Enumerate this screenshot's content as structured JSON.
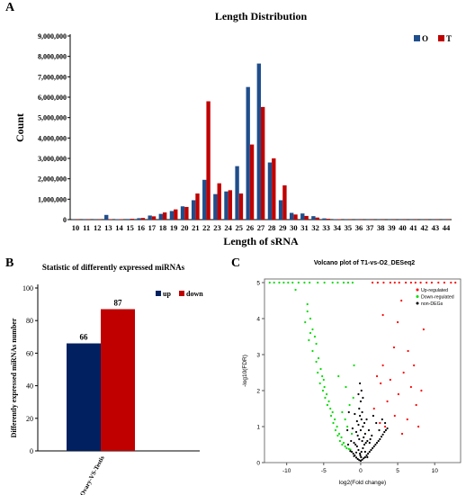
{
  "panels": {
    "a": "A",
    "b": "B",
    "c": "C"
  },
  "colors": {
    "navy": "#1f4e8c",
    "red": "#c00000",
    "b_up": "#002060",
    "b_down": "#c00000",
    "volcano_up": "#ff0000",
    "volcano_down": "#00dd00",
    "volcano_non": "#000000"
  },
  "chart_data": [
    {
      "type": "bar",
      "title": "Length Distribution",
      "xlabel": "Length of sRNA",
      "ylabel": "Count",
      "ylim": [
        0,
        9000000
      ],
      "yticks": [
        0,
        1000000,
        2000000,
        3000000,
        4000000,
        5000000,
        6000000,
        7000000,
        8000000,
        9000000
      ],
      "yticklabels": [
        "0",
        "1,000,000",
        "2,000,000",
        "3,000,000",
        "4,000,000",
        "5,000,000",
        "6,000,000",
        "7,000,000",
        "8,000,000",
        "9,000,000"
      ],
      "legend_position": "top-right",
      "categories": [
        "10",
        "11",
        "12",
        "13",
        "14",
        "15",
        "16",
        "17",
        "18",
        "19",
        "20",
        "21",
        "22",
        "23",
        "24",
        "25",
        "26",
        "27",
        "28",
        "29",
        "30",
        "31",
        "32",
        "33",
        "34",
        "35",
        "36",
        "37",
        "38",
        "39",
        "40",
        "41",
        "42",
        "43",
        "44"
      ],
      "series": [
        {
          "name": "O",
          "values": [
            10000,
            10000,
            10000,
            230000,
            20000,
            30000,
            70000,
            200000,
            280000,
            420000,
            650000,
            950000,
            1950000,
            1250000,
            1380000,
            2620000,
            6500000,
            7650000,
            2800000,
            950000,
            330000,
            300000,
            170000,
            60000,
            20000,
            10000,
            5000,
            5000,
            5000,
            5000,
            5000,
            5000,
            5000,
            5000,
            5000
          ]
        },
        {
          "name": "T",
          "values": [
            10000,
            10000,
            10000,
            20000,
            20000,
            40000,
            80000,
            160000,
            350000,
            500000,
            620000,
            1280000,
            5800000,
            1780000,
            1440000,
            1280000,
            3680000,
            5520000,
            3000000,
            1680000,
            250000,
            180000,
            100000,
            40000,
            20000,
            10000,
            5000,
            5000,
            5000,
            5000,
            5000,
            5000,
            5000,
            5000,
            5000
          ]
        }
      ]
    },
    {
      "type": "bar",
      "title": "Statistic of differently expressed miRNAs",
      "ylabel": "Differently expressed miRNAs number",
      "ylim": [
        0,
        100
      ],
      "yticks": [
        0,
        20,
        40,
        60,
        80,
        100
      ],
      "legend_position": "top-right",
      "categories": [
        "Ovary-VS-Testis"
      ],
      "series": [
        {
          "name": "up",
          "values": [
            66
          ]
        },
        {
          "name": "down",
          "values": [
            87
          ]
        }
      ],
      "data_labels": [
        "66",
        "87"
      ]
    },
    {
      "type": "scatter",
      "title": "Volcano plot of T1-vs-O2_DESeq2",
      "xlabel": "log2(Fold change)",
      "ylabel": "-log10(FDR)",
      "xlim": [
        -13,
        13.5
      ],
      "ylim": [
        0,
        5.1
      ],
      "xticks": [
        -10,
        -5,
        0,
        5,
        10
      ],
      "yticks": [
        0,
        1,
        2,
        3,
        4,
        5
      ],
      "legend_position": "top-right",
      "series": [
        {
          "name": "Up-regulated",
          "points": [
            [
              1.6,
              5
            ],
            [
              2.3,
              5
            ],
            [
              3.1,
              5
            ],
            [
              4.0,
              5
            ],
            [
              4.6,
              5
            ],
            [
              5.2,
              5
            ],
            [
              6.1,
              5
            ],
            [
              6.8,
              5
            ],
            [
              7.4,
              5
            ],
            [
              8.1,
              5
            ],
            [
              8.9,
              5
            ],
            [
              9.6,
              5
            ],
            [
              10.5,
              5
            ],
            [
              11.3,
              5
            ],
            [
              12.2,
              5
            ],
            [
              12.8,
              5
            ],
            [
              5.5,
              4.5
            ],
            [
              3.0,
              4.1
            ],
            [
              5.0,
              3.9
            ],
            [
              8.5,
              3.7
            ],
            [
              4.5,
              3.2
            ],
            [
              6.4,
              3.1
            ],
            [
              7.2,
              2.7
            ],
            [
              3.0,
              2.7
            ],
            [
              5.8,
              2.5
            ],
            [
              6.8,
              2.1
            ],
            [
              2.2,
              2.4
            ],
            [
              2.7,
              2.2
            ],
            [
              4.0,
              2.3
            ],
            [
              8.2,
              2.0
            ],
            [
              5.1,
              1.9
            ],
            [
              3.6,
              1.7
            ],
            [
              7.5,
              1.6
            ],
            [
              4.6,
              1.3
            ],
            [
              2.6,
              1.1
            ],
            [
              6.3,
              1.2
            ],
            [
              1.8,
              1.5
            ],
            [
              3.3,
              1.0
            ],
            [
              5.6,
              0.8
            ],
            [
              7.8,
              1.0
            ]
          ]
        },
        {
          "name": "Down-regulated",
          "points": [
            [
              -12.3,
              5
            ],
            [
              -11.7,
              5
            ],
            [
              -11.0,
              5
            ],
            [
              -10.4,
              5
            ],
            [
              -9.8,
              5
            ],
            [
              -9.2,
              5
            ],
            [
              -8.4,
              5
            ],
            [
              -7.6,
              5
            ],
            [
              -6.9,
              5
            ],
            [
              -5.8,
              5
            ],
            [
              -4.9,
              5
            ],
            [
              -3.8,
              5
            ],
            [
              -3.1,
              5
            ],
            [
              -2.3,
              5
            ],
            [
              -1.7,
              5
            ],
            [
              -1.1,
              5
            ],
            [
              -8.8,
              4.8
            ],
            [
              -7.2,
              4.2
            ],
            [
              -6.8,
              4.0
            ],
            [
              -7.5,
              3.9
            ],
            [
              -6.5,
              3.7
            ],
            [
              -6.2,
              3.5
            ],
            [
              -7.0,
              3.4
            ],
            [
              -6.0,
              3.3
            ],
            [
              -6.5,
              3.1
            ],
            [
              -5.7,
              2.9
            ],
            [
              -6.0,
              2.8
            ],
            [
              -5.4,
              2.6
            ],
            [
              -5.8,
              2.5
            ],
            [
              -5.2,
              2.4
            ],
            [
              -5.5,
              2.2
            ],
            [
              -4.9,
              2.1
            ],
            [
              -5.1,
              2.0
            ],
            [
              -4.6,
              1.9
            ],
            [
              -4.8,
              1.8
            ],
            [
              -4.3,
              1.7
            ],
            [
              -4.5,
              1.6
            ],
            [
              -4.1,
              1.5
            ],
            [
              -3.8,
              1.4
            ],
            [
              -4.0,
              1.3
            ],
            [
              -3.5,
              1.2
            ],
            [
              -3.7,
              1.1
            ],
            [
              -3.2,
              1.0
            ],
            [
              -3.4,
              0.9
            ],
            [
              -2.9,
              0.8
            ],
            [
              -3.1,
              0.75
            ],
            [
              -2.6,
              0.7
            ],
            [
              -2.8,
              0.6
            ],
            [
              -2.3,
              0.55
            ],
            [
              -2.5,
              0.5
            ],
            [
              -2.1,
              0.45
            ],
            [
              -1.9,
              0.4
            ],
            [
              -1.6,
              0.38
            ],
            [
              -1.4,
              0.36
            ],
            [
              -2.0,
              2.1
            ],
            [
              -3.0,
              2.4
            ],
            [
              -2.1,
              1.2
            ],
            [
              -1.0,
              1.8
            ],
            [
              -0.9,
              2.7
            ],
            [
              -1.5,
              1.6
            ],
            [
              -2.5,
              1.4
            ],
            [
              -1.8,
              1.0
            ],
            [
              -1.2,
              0.8
            ],
            [
              -7.2,
              4.4
            ],
            [
              -6.8,
              3.6
            ],
            [
              -5.0,
              2.3
            ]
          ]
        },
        {
          "name": "non-DEGs",
          "points": [
            [
              0.0,
              0.05
            ],
            [
              0.2,
              0.08
            ],
            [
              -0.2,
              0.07
            ],
            [
              0.4,
              0.12
            ],
            [
              -0.4,
              0.1
            ],
            [
              0.6,
              0.15
            ],
            [
              -0.6,
              0.14
            ],
            [
              0.8,
              0.2
            ],
            [
              -0.8,
              0.2
            ],
            [
              1.0,
              0.25
            ],
            [
              -1.0,
              0.25
            ],
            [
              1.2,
              0.3
            ],
            [
              -1.2,
              0.3
            ],
            [
              1.4,
              0.35
            ],
            [
              -1.4,
              0.32
            ],
            [
              1.6,
              0.4
            ],
            [
              1.8,
              0.45
            ],
            [
              2.0,
              0.5
            ],
            [
              2.2,
              0.55
            ],
            [
              2.4,
              0.6
            ],
            [
              2.6,
              0.65
            ],
            [
              2.8,
              0.72
            ],
            [
              3.0,
              0.78
            ],
            [
              3.2,
              0.85
            ],
            [
              3.4,
              0.9
            ],
            [
              3.6,
              0.95
            ],
            [
              0.1,
              0.3
            ],
            [
              -0.1,
              0.25
            ],
            [
              0.3,
              0.4
            ],
            [
              -0.3,
              0.35
            ],
            [
              0.5,
              0.5
            ],
            [
              -0.5,
              0.45
            ],
            [
              0.7,
              0.55
            ],
            [
              -0.7,
              0.5
            ],
            [
              0.9,
              0.6
            ],
            [
              -0.9,
              0.55
            ],
            [
              0.2,
              0.6
            ],
            [
              -0.2,
              0.65
            ],
            [
              0.4,
              0.7
            ],
            [
              -0.4,
              0.75
            ],
            [
              0.6,
              0.8
            ],
            [
              -0.6,
              0.85
            ],
            [
              0.0,
              0.9
            ],
            [
              0.3,
              1.0
            ],
            [
              -0.3,
              1.05
            ],
            [
              0.1,
              1.2
            ],
            [
              -0.1,
              1.3
            ],
            [
              0.5,
              1.1
            ],
            [
              -0.5,
              1.15
            ],
            [
              0.2,
              1.4
            ],
            [
              -0.2,
              1.5
            ],
            [
              0.0,
              1.7
            ],
            [
              0.3,
              1.8
            ],
            [
              -0.3,
              1.9
            ],
            [
              0.1,
              2.0
            ],
            [
              -0.1,
              2.2
            ],
            [
              1.1,
              0.9
            ],
            [
              -1.1,
              0.95
            ],
            [
              1.5,
              0.75
            ],
            [
              2.1,
              1.1
            ],
            [
              1.7,
              1.3
            ],
            [
              -1.6,
              1.4
            ],
            [
              -1.8,
              0.9
            ],
            [
              0.8,
              1.2
            ],
            [
              -0.8,
              1.35
            ],
            [
              1.3,
              0.65
            ],
            [
              2.5,
              0.9
            ],
            [
              2.9,
              1.2
            ],
            [
              0.6,
              0.3
            ],
            [
              -0.6,
              0.28
            ],
            [
              1.2,
              0.55
            ],
            [
              -1.3,
              0.6
            ],
            [
              0.9,
              0.15
            ],
            [
              -0.9,
              0.18
            ],
            [
              3.3,
              1.1
            ],
            [
              -1.7,
              0.5
            ],
            [
              0.05,
              0.15
            ],
            [
              -0.05,
              0.2
            ]
          ]
        }
      ]
    }
  ]
}
